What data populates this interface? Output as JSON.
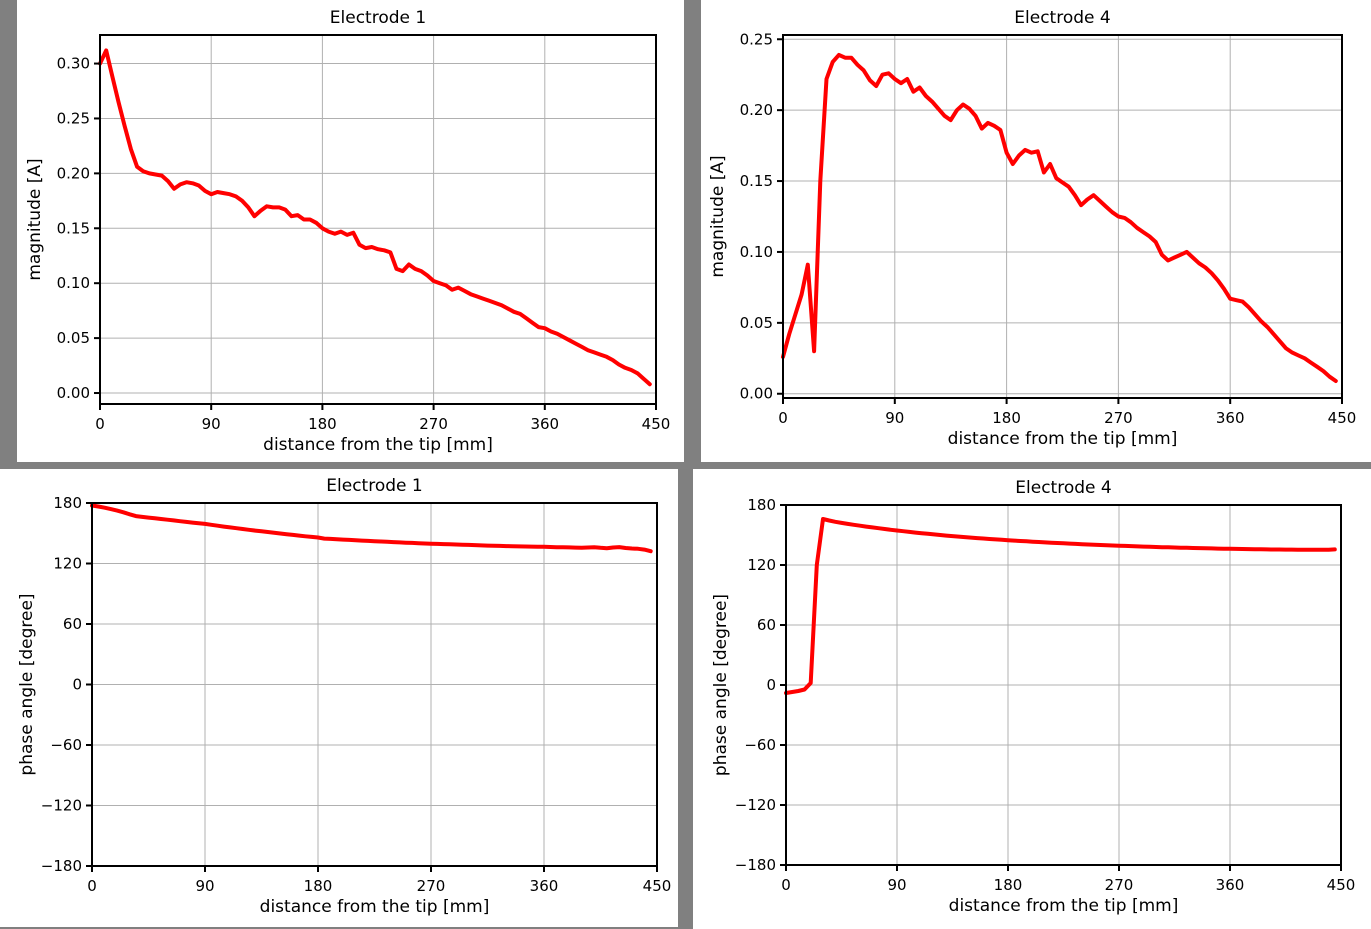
{
  "page": {
    "background_color": "#808080",
    "panel_background_color": "#ffffff",
    "frame_color": "#000000",
    "text_color": "#000000"
  },
  "chart_data": [
    {
      "id": "electrode1-magnitude",
      "type": "line",
      "title": "Electrode 1",
      "xlabel": "distance from the tip [mm]",
      "ylabel": "magnitude [A]",
      "xlim": [
        0,
        450
      ],
      "ylim": [
        -0.01,
        0.326
      ],
      "xticks": [
        0,
        90,
        180,
        270,
        360,
        450
      ],
      "xtick_labels": [
        "0",
        "90",
        "180",
        "270",
        "360",
        "450"
      ],
      "yticks": [
        0.0,
        0.05,
        0.1,
        0.15,
        0.2,
        0.25,
        0.3
      ],
      "ytick_labels": [
        "0.00",
        "0.05",
        "0.10",
        "0.15",
        "0.20",
        "0.25",
        "0.30"
      ],
      "grid": true,
      "grid_color": "#b0b0b0",
      "line_color": "#ff0000",
      "line_width": 4,
      "x_start": 0,
      "x_step": 5,
      "values": [
        0.3,
        0.312,
        0.288,
        0.265,
        0.243,
        0.222,
        0.206,
        0.202,
        0.2,
        0.199,
        0.198,
        0.193,
        0.186,
        0.19,
        0.192,
        0.191,
        0.189,
        0.184,
        0.181,
        0.183,
        0.182,
        0.181,
        0.179,
        0.175,
        0.169,
        0.161,
        0.166,
        0.17,
        0.169,
        0.169,
        0.167,
        0.161,
        0.162,
        0.158,
        0.158,
        0.155,
        0.15,
        0.147,
        0.145,
        0.147,
        0.144,
        0.146,
        0.135,
        0.132,
        0.133,
        0.131,
        0.13,
        0.128,
        0.113,
        0.111,
        0.117,
        0.113,
        0.111,
        0.107,
        0.102,
        0.1,
        0.098,
        0.094,
        0.096,
        0.093,
        0.09,
        0.088,
        0.086,
        0.084,
        0.082,
        0.08,
        0.077,
        0.074,
        0.072,
        0.068,
        0.064,
        0.06,
        0.059,
        0.056,
        0.054,
        0.051,
        0.048,
        0.045,
        0.042,
        0.039,
        0.037,
        0.035,
        0.033,
        0.03,
        0.026,
        0.023,
        0.021,
        0.018,
        0.013,
        0.008
      ]
    },
    {
      "id": "electrode4-magnitude",
      "type": "line",
      "title": "Electrode 4",
      "xlabel": "distance from the tip [mm]",
      "ylabel": "magnitude [A]",
      "xlim": [
        0,
        450
      ],
      "ylim": [
        -0.003,
        0.253
      ],
      "xticks": [
        0,
        90,
        180,
        270,
        360,
        450
      ],
      "xtick_labels": [
        "0",
        "90",
        "180",
        "270",
        "360",
        "450"
      ],
      "yticks": [
        0.0,
        0.05,
        0.1,
        0.15,
        0.2,
        0.25
      ],
      "ytick_labels": [
        "0.00",
        "0.05",
        "0.10",
        "0.15",
        "0.20",
        "0.25"
      ],
      "grid": true,
      "grid_color": "#b0b0b0",
      "line_color": "#ff0000",
      "line_width": 4,
      "x_start": 0,
      "x_step": 5,
      "values": [
        0.026,
        0.042,
        0.056,
        0.07,
        0.091,
        0.03,
        0.15,
        0.222,
        0.234,
        0.239,
        0.237,
        0.237,
        0.232,
        0.228,
        0.221,
        0.217,
        0.225,
        0.226,
        0.222,
        0.219,
        0.222,
        0.213,
        0.216,
        0.21,
        0.206,
        0.201,
        0.196,
        0.193,
        0.2,
        0.204,
        0.201,
        0.196,
        0.187,
        0.191,
        0.189,
        0.186,
        0.17,
        0.162,
        0.168,
        0.172,
        0.17,
        0.171,
        0.156,
        0.162,
        0.152,
        0.149,
        0.146,
        0.14,
        0.133,
        0.137,
        0.14,
        0.136,
        0.132,
        0.128,
        0.125,
        0.124,
        0.121,
        0.117,
        0.114,
        0.111,
        0.107,
        0.098,
        0.094,
        0.096,
        0.098,
        0.1,
        0.096,
        0.092,
        0.089,
        0.085,
        0.08,
        0.074,
        0.067,
        0.066,
        0.065,
        0.061,
        0.056,
        0.051,
        0.047,
        0.042,
        0.037,
        0.032,
        0.029,
        0.027,
        0.025,
        0.022,
        0.019,
        0.016,
        0.012,
        0.009
      ]
    },
    {
      "id": "electrode1-phase",
      "type": "line",
      "title": "Electrode 1",
      "xlabel": "distance from the tip [mm]",
      "ylabel": "phase angle [degree]",
      "xlim": [
        0,
        450
      ],
      "ylim": [
        -180,
        180
      ],
      "xticks": [
        0,
        90,
        180,
        270,
        360,
        450
      ],
      "xtick_labels": [
        "0",
        "90",
        "180",
        "270",
        "360",
        "450"
      ],
      "yticks": [
        180,
        120,
        60,
        0,
        -60,
        -120,
        -180
      ],
      "ytick_labels": [
        "180",
        "120",
        "60",
        "0",
        "−60",
        "−120",
        "−180"
      ],
      "grid": true,
      "grid_color": "#b0b0b0",
      "line_color": "#ff0000",
      "line_width": 4,
      "x_start": 0,
      "x_step": 5,
      "values": [
        177.5,
        176.5,
        175.3,
        174.0,
        172.5,
        170.8,
        168.8,
        167.0,
        166.2,
        165.5,
        164.8,
        164.1,
        163.4,
        162.7,
        162.0,
        161.3,
        160.6,
        160.0,
        159.3,
        158.4,
        157.5,
        156.6,
        155.8,
        155.0,
        154.2,
        153.4,
        152.6,
        151.9,
        151.2,
        150.5,
        149.8,
        149.1,
        148.4,
        147.7,
        147.0,
        146.4,
        145.8,
        144.7,
        144.4,
        144.0,
        143.7,
        143.4,
        143.0,
        142.7,
        142.4,
        142.1,
        141.8,
        141.5,
        141.2,
        140.9,
        140.6,
        140.4,
        140.1,
        139.8,
        139.6,
        139.4,
        139.2,
        139.0,
        138.8,
        138.6,
        138.4,
        138.2,
        138.0,
        137.8,
        137.6,
        137.5,
        137.3,
        137.2,
        137.0,
        136.9,
        136.8,
        136.7,
        136.6,
        136.4,
        136.2,
        136.1,
        136.0,
        135.8,
        135.6,
        135.9,
        136.2,
        135.6,
        135.2,
        135.9,
        136.3,
        135.4,
        134.9,
        134.6,
        133.8,
        132.2
      ]
    },
    {
      "id": "electrode4-phase",
      "type": "line",
      "title": "Electrode 4",
      "xlabel": "distance from the tip [mm]",
      "ylabel": "phase angle [degree]",
      "xlim": [
        0,
        450
      ],
      "ylim": [
        -180,
        180
      ],
      "xticks": [
        0,
        90,
        180,
        270,
        360,
        450
      ],
      "xtick_labels": [
        "0",
        "90",
        "180",
        "270",
        "360",
        "450"
      ],
      "yticks": [
        180,
        120,
        60,
        0,
        -60,
        -120,
        -180
      ],
      "ytick_labels": [
        "180",
        "120",
        "60",
        "0",
        "−60",
        "−120",
        "−180"
      ],
      "grid": true,
      "grid_color": "#b0b0b0",
      "line_color": "#ff0000",
      "line_width": 4,
      "x_start": 0,
      "x_step": 5,
      "values": [
        -8.0,
        -7.0,
        -6.0,
        -4.5,
        2.0,
        120.0,
        166.0,
        164.5,
        163.2,
        162.1,
        161.1,
        160.2,
        159.3,
        158.4,
        157.6,
        156.8,
        156.0,
        155.2,
        154.5,
        153.8,
        153.1,
        152.4,
        151.8,
        151.2,
        150.6,
        150.0,
        149.4,
        148.9,
        148.4,
        147.9,
        147.4,
        146.9,
        146.5,
        146.0,
        145.6,
        145.2,
        144.8,
        144.4,
        144.0,
        143.7,
        143.3,
        143.0,
        142.6,
        142.3,
        142.0,
        141.7,
        141.4,
        141.1,
        140.8,
        140.5,
        140.3,
        140.0,
        139.8,
        139.5,
        139.3,
        139.1,
        138.9,
        138.6,
        138.4,
        138.2,
        138.0,
        137.8,
        137.7,
        137.5,
        137.3,
        137.2,
        137.0,
        136.9,
        136.7,
        136.6,
        136.4,
        136.3,
        136.2,
        136.1,
        136.0,
        135.9,
        135.8,
        135.7,
        135.6,
        135.5,
        135.5,
        135.4,
        135.4,
        135.3,
        135.3,
        135.2,
        135.2,
        135.2,
        135.3,
        135.6
      ]
    }
  ]
}
